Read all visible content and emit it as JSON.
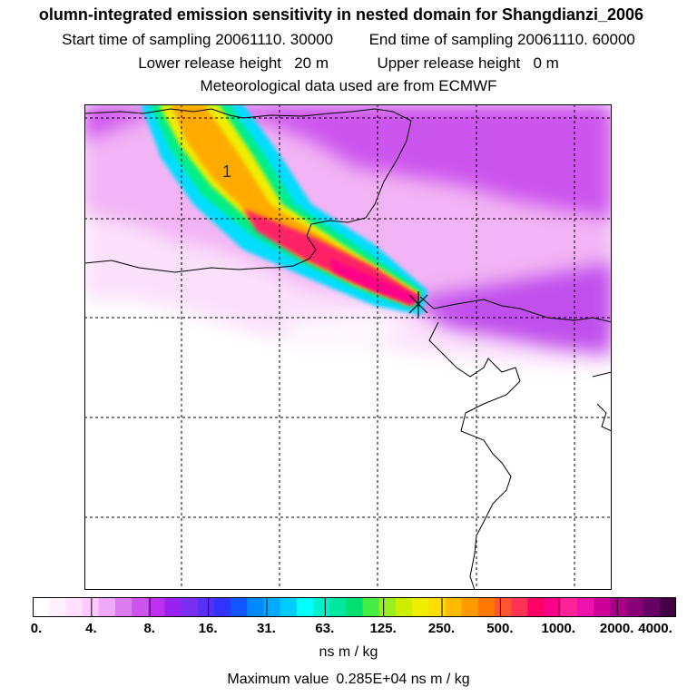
{
  "title": {
    "line1": "olumn-integrated emission sensitivity in nested domain for Shangdianzi_2006",
    "start_label": "Start time of sampling",
    "start_value": "20061110. 30000",
    "end_label": "End time of sampling",
    "end_value": "20061110. 60000",
    "lower_label": "Lower release height",
    "lower_value": "20 m",
    "upper_label": "Upper release height",
    "upper_value": "0 m",
    "met_line": "Meteorological data used are from ECMWF"
  },
  "map": {
    "plume_label": "1",
    "receptor_marker": "receptor-cross"
  },
  "colorbar": {
    "ticks": [
      "0.",
      "4.",
      "8.",
      "16.",
      "31.",
      "63.",
      "125.",
      "250.",
      "500.",
      "1000.",
      "2000.",
      "4000."
    ],
    "colors": [
      "#ffffff",
      "#fff0ff",
      "#ffe0ff",
      "#ffc8ff",
      "#f0a8f8",
      "#dc7cf0",
      "#cc55ee",
      "#bb33ee",
      "#9922ee",
      "#7a2ef0",
      "#5a2ef5",
      "#3333ff",
      "#1155ff",
      "#0088ff",
      "#00aaff",
      "#00ccff",
      "#00ffff",
      "#00f0cc",
      "#00e8a0",
      "#00e070",
      "#44ee44",
      "#99ee22",
      "#ccee00",
      "#eeee00",
      "#ffdd00",
      "#ffbb00",
      "#ff9900",
      "#ff7700",
      "#ff5533",
      "#ff3355",
      "#ff0066",
      "#ff0088",
      "#ff2299",
      "#ee11aa",
      "#cc0099",
      "#aa0088",
      "#880077",
      "#660066",
      "#440044"
    ],
    "units": "ns m / kg"
  },
  "max": {
    "label": "Maximum value",
    "value": "0.285E+04",
    "units": "ns m / kg"
  }
}
